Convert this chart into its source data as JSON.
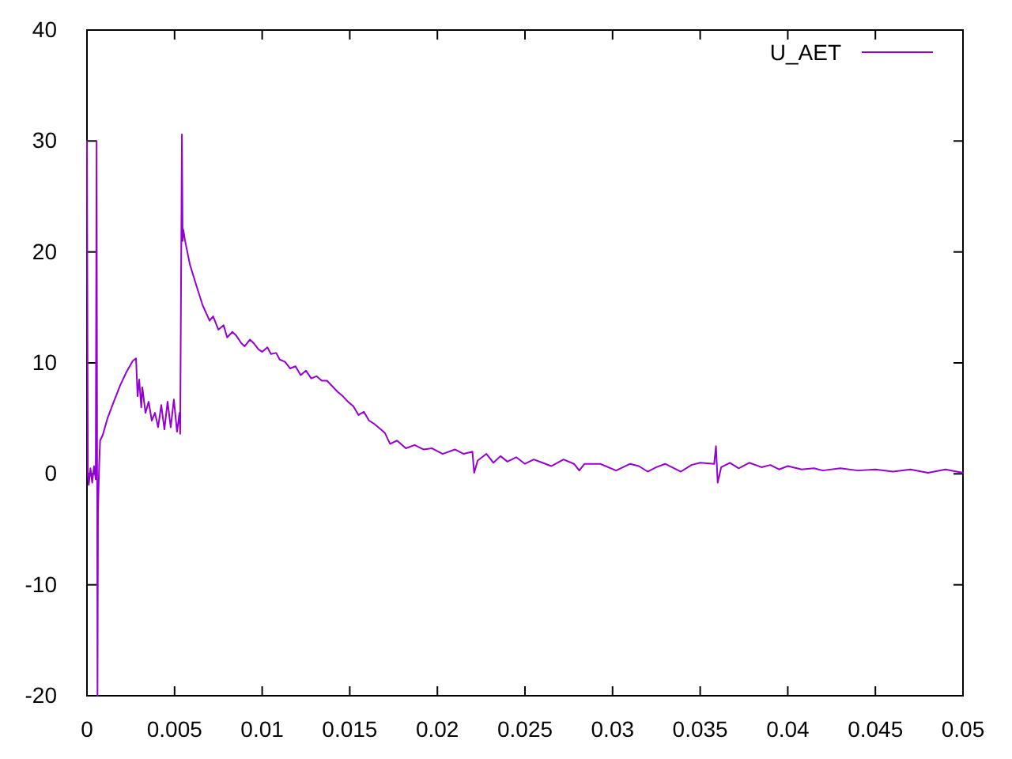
{
  "chart_data": {
    "type": "line",
    "xlim": [
      0,
      0.05
    ],
    "ylim": [
      -20,
      40
    ],
    "xticks": [
      0,
      0.005,
      0.01,
      0.015,
      0.02,
      0.025,
      0.03,
      0.035,
      0.04,
      0.045,
      0.05
    ],
    "yticks": [
      -20,
      -10,
      0,
      10,
      20,
      30,
      40
    ],
    "legend": "top right",
    "line_style": "solid",
    "series": [
      {
        "name": "U_AET",
        "color": "#9400d3",
        "x": [
          0,
          5e-05,
          0.0001,
          0.0002,
          0.0003,
          0.0004,
          0.0005,
          0.00055,
          0.0006,
          0.00063,
          0.0007,
          0.00075,
          0.0009,
          0.00117,
          0.00153,
          0.0019,
          0.00226,
          0.00262,
          0.0028,
          0.00289,
          0.00298,
          0.0031,
          0.00316,
          0.00334,
          0.00352,
          0.0037,
          0.00388,
          0.00406,
          0.00424,
          0.00442,
          0.0046,
          0.00478,
          0.00496,
          0.00514,
          0.00528,
          0.00532,
          0.00542,
          0.00546,
          0.0055,
          0.0056,
          0.00587,
          0.0062,
          0.0066,
          0.007,
          0.0072,
          0.0075,
          0.0078,
          0.008,
          0.0083,
          0.0085,
          0.0088,
          0.009,
          0.0093,
          0.0095,
          0.0098,
          0.01,
          0.0103,
          0.0105,
          0.0108,
          0.011,
          0.0113,
          0.0116,
          0.0119,
          0.0122,
          0.0125,
          0.0128,
          0.0131,
          0.0134,
          0.0137,
          0.014,
          0.0143,
          0.0146,
          0.0149,
          0.0152,
          0.0155,
          0.0158,
          0.0161,
          0.0164,
          0.0167,
          0.017,
          0.0173,
          0.0177,
          0.0182,
          0.0187,
          0.0192,
          0.0197,
          0.0203,
          0.021,
          0.0215,
          0.022,
          0.0221,
          0.0223,
          0.0228,
          0.0232,
          0.0236,
          0.024,
          0.0245,
          0.025,
          0.0255,
          0.026,
          0.0265,
          0.0272,
          0.0278,
          0.0281,
          0.0284,
          0.0293,
          0.0302,
          0.031,
          0.0315,
          0.032,
          0.0325,
          0.033,
          0.0339,
          0.0345,
          0.035,
          0.0358,
          0.0359,
          0.036,
          0.0362,
          0.0367,
          0.0372,
          0.0378,
          0.0385,
          0.039,
          0.0395,
          0.04,
          0.0408,
          0.0415,
          0.042,
          0.043,
          0.044,
          0.045,
          0.046,
          0.047,
          0.048,
          0.049,
          0.05
        ],
        "values": [
          30,
          0,
          -1,
          0.5,
          -0.8,
          0.7,
          -0.5,
          30,
          -20,
          -3.4,
          1,
          3,
          3.5,
          5,
          6.5,
          8,
          9.2,
          10.2,
          10.4,
          7,
          8.5,
          6,
          7.8,
          5.5,
          6.5,
          4.8,
          5.5,
          4.2,
          6.2,
          4,
          6.5,
          4.2,
          6.7,
          3.8,
          5.5,
          3.6,
          30.6,
          21,
          22,
          21,
          18.9,
          17.2,
          15.2,
          13.8,
          14.2,
          13,
          13.4,
          12.3,
          12.8,
          12.5,
          11.8,
          11.5,
          12.1,
          11.8,
          11.2,
          11,
          11.4,
          10.8,
          10.9,
          10.3,
          10.1,
          9.5,
          9.7,
          8.9,
          9.3,
          8.6,
          8.8,
          8.4,
          8.4,
          7.9,
          7.4,
          7.0,
          6.5,
          6.1,
          5.3,
          5.6,
          4.8,
          4.5,
          4.1,
          3.7,
          2.7,
          3.0,
          2.3,
          2.6,
          2.2,
          2.3,
          1.8,
          2.2,
          1.8,
          2.0,
          0.1,
          1.2,
          1.8,
          1.0,
          1.6,
          1.1,
          1.5,
          0.9,
          1.3,
          1.0,
          0.7,
          1.3,
          0.9,
          0.3,
          0.9,
          0.9,
          0.3,
          0.9,
          0.7,
          0.2,
          0.6,
          0.9,
          0.2,
          0.8,
          1.0,
          0.9,
          2.5,
          -0.8,
          0.6,
          1.0,
          0.5,
          1.0,
          0.6,
          0.8,
          0.4,
          0.7,
          0.4,
          0.5,
          0.3,
          0.5,
          0.3,
          0.4,
          0.2,
          0.4,
          0.1,
          0.4,
          0.1
        ]
      }
    ]
  }
}
